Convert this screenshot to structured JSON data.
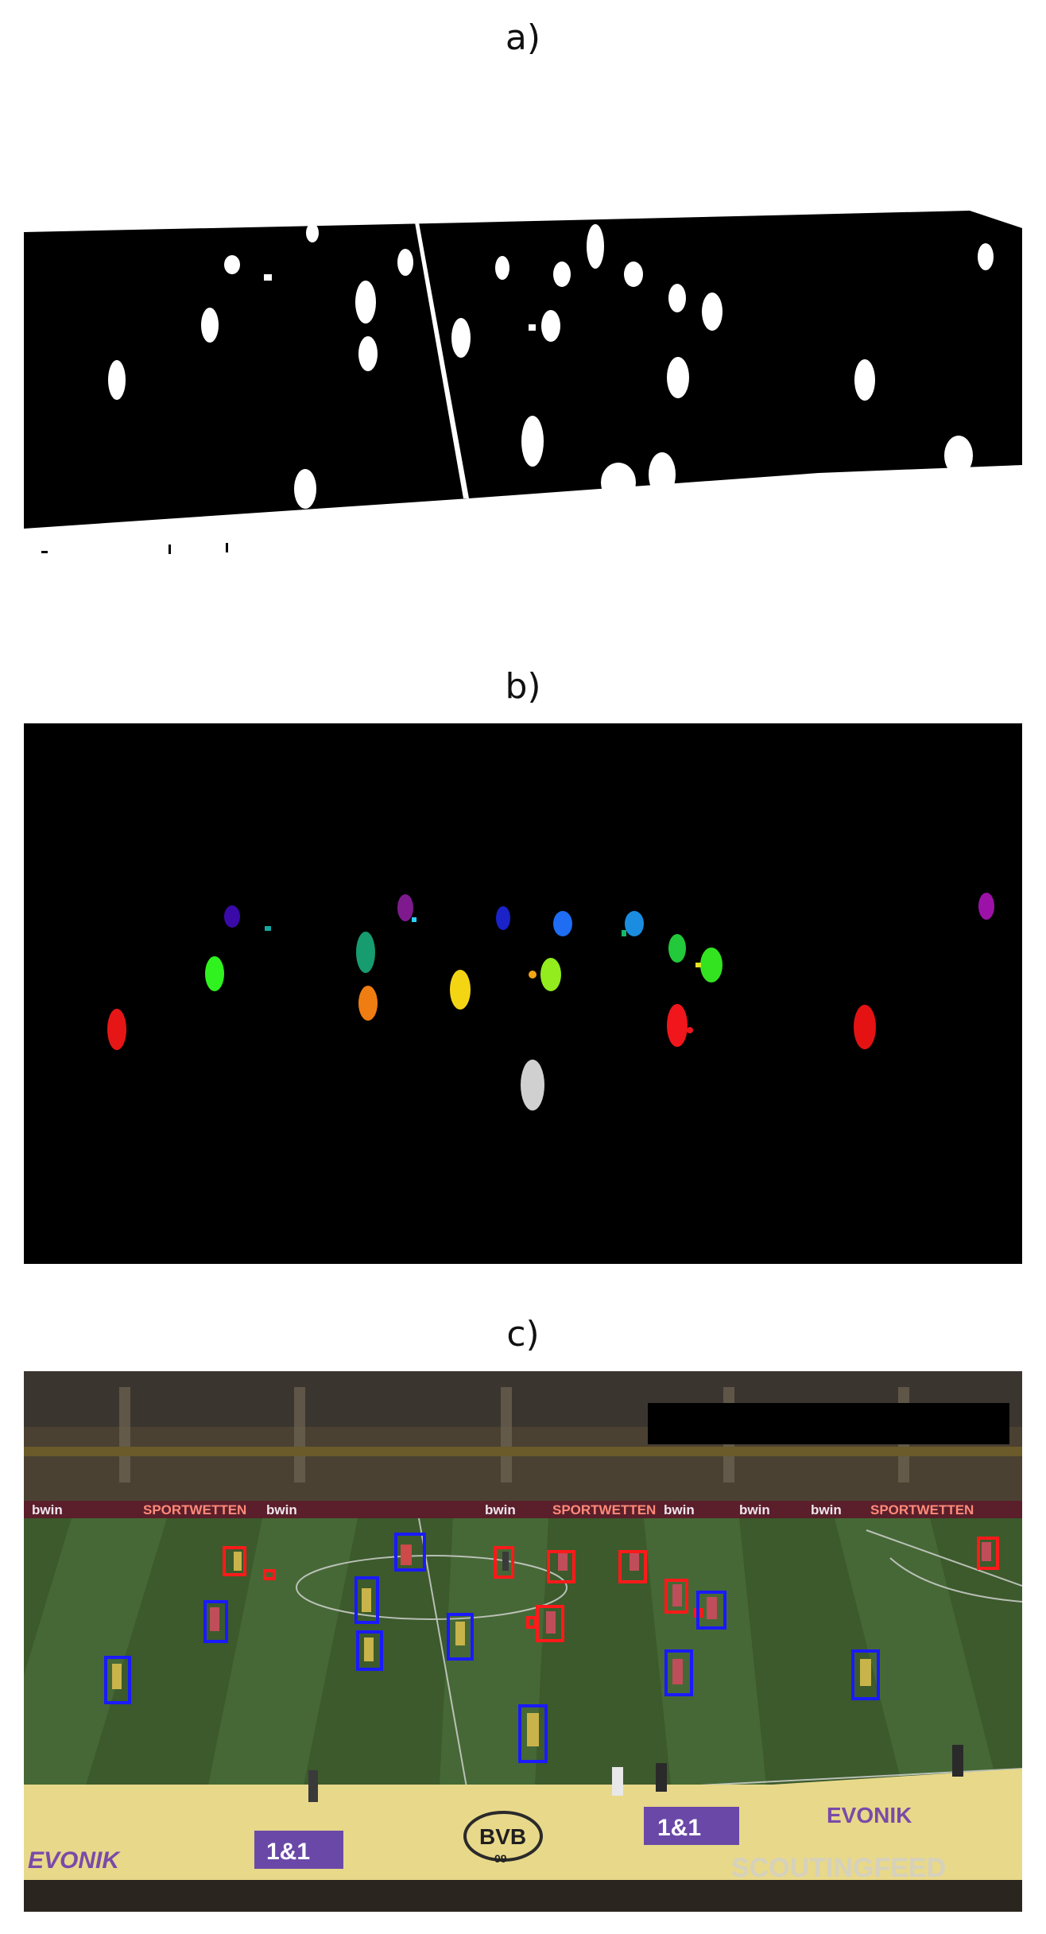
{
  "panels": [
    {
      "label": "a)",
      "kind": "binary-mask"
    },
    {
      "label": "b)",
      "kind": "colored-segmentation"
    },
    {
      "label": "c)",
      "kind": "detections-overlay"
    }
  ],
  "panel_c": {
    "ad_texts": [
      "bwin",
      "SPORTWETTEN",
      "bwin",
      "bwin",
      "SPORTWETTEN",
      "bwin",
      "bwin",
      "bwin",
      "SPORTWETTEN"
    ],
    "bottom_banner": [
      "EVONIK",
      "1&1",
      "BVB",
      "1&1",
      "EVONIK"
    ],
    "bottom_banner_sub": "09",
    "watermark": "SCOUTINGFEED"
  }
}
